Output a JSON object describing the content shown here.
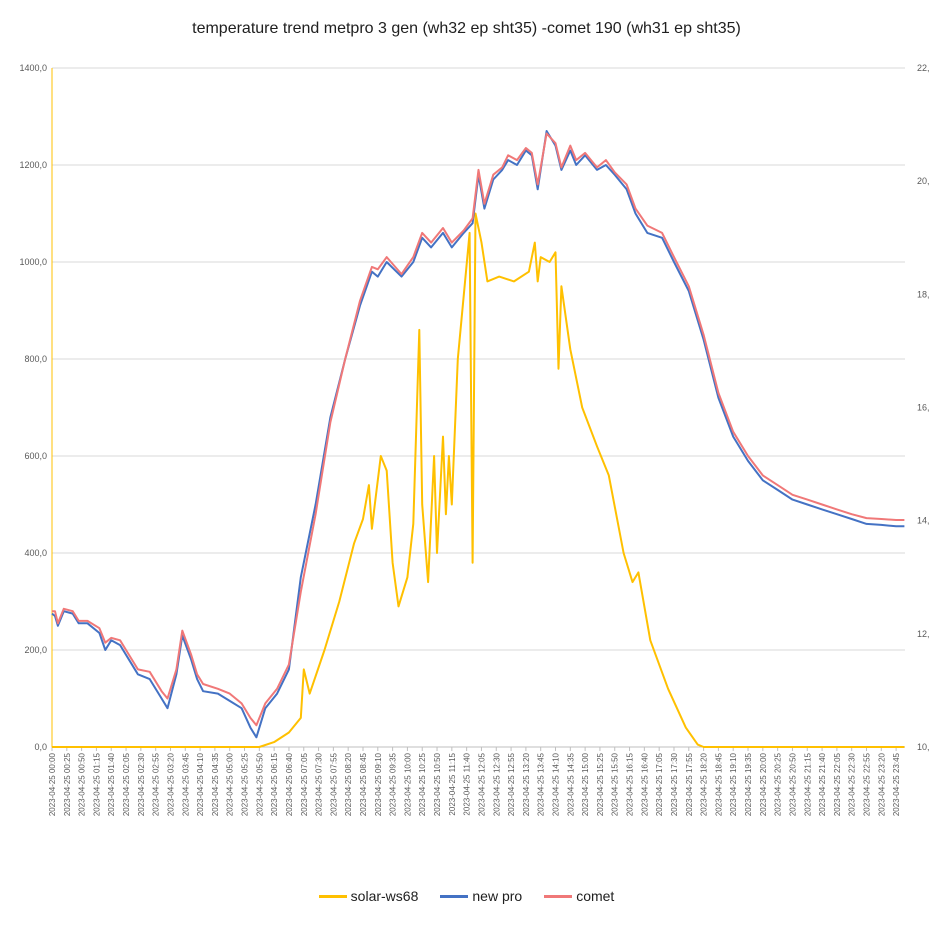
{
  "chart_data": {
    "type": "line",
    "title": "temperature trend metpro 3 gen (wh32 ep sht35) -comet 190 (wh31 ep sht35)",
    "xlabel": "",
    "ylabel": "",
    "ylim": [
      0,
      1400
    ],
    "y_ticks": [
      "0,0",
      "200,0",
      "400,0",
      "600,0",
      "800,0",
      "1000,0",
      "1200,0",
      "1400,0"
    ],
    "y2lim": [
      10,
      22
    ],
    "y2_ticks": [
      "10,",
      "12,",
      "14,",
      "16,",
      "18,",
      "20,",
      "22,"
    ],
    "grid": true,
    "legend_position": "bottom",
    "x_ticks": [
      "2023-04-25 00:00",
      "2023-04-25 00:25",
      "2023-04-25 00:50",
      "2023-04-25 01:15",
      "2023-04-25 01:40",
      "2023-04-25 02:05",
      "2023-04-25 02:30",
      "2023-04-25 02:55",
      "2023-04-25 03:20",
      "2023-04-25 03:45",
      "2023-04-25 04:10",
      "2023-04-25 04:35",
      "2023-04-25 05:00",
      "2023-04-25 05:25",
      "2023-04-25 05:50",
      "2023-04-25 06:15",
      "2023-04-25 06:40",
      "2023-04-25 07:05",
      "2023-04-25 07:30",
      "2023-04-25 07:55",
      "2023-04-25 08:20",
      "2023-04-25 08:45",
      "2023-04-25 09:10",
      "2023-04-25 09:35",
      "2023-04-25 10:00",
      "2023-04-25 10:25",
      "2023-04-25 10:50",
      "2023-04-25 11:15",
      "2023-04-25 11:40",
      "2023-04-25 12:05",
      "2023-04-25 12:30",
      "2023-04-25 12:55",
      "2023-04-25 13:20",
      "2023-04-25 13:45",
      "2023-04-25 14:10",
      "2023-04-25 14:35",
      "2023-04-25 15:00",
      "2023-04-25 15:25",
      "2023-04-25 15:50",
      "2023-04-25 16:15",
      "2023-04-25 16:40",
      "2023-04-25 17:05",
      "2023-04-25 17:30",
      "2023-04-25 17:55",
      "2023-04-25 18:20",
      "2023-04-25 18:45",
      "2023-04-25 19:10",
      "2023-04-25 19:35",
      "2023-04-25 20:00",
      "2023-04-25 20:25",
      "2023-04-25 20:50",
      "2023-04-25 21:15",
      "2023-04-25 21:40",
      "2023-04-25 22:05",
      "2023-04-25 22:30",
      "2023-04-25 22:55",
      "2023-04-25 23:20",
      "2023-04-25 23:45"
    ],
    "series": [
      {
        "name": "solar-ws68",
        "color": "#FFC000",
        "axis": "left",
        "points": [
          [
            "2023-04-25 00:00",
            0
          ],
          [
            "2023-04-25 05:50",
            0
          ],
          [
            "2023-04-25 06:15",
            10
          ],
          [
            "2023-04-25 06:40",
            30
          ],
          [
            "2023-04-25 07:00",
            60
          ],
          [
            "2023-04-25 07:05",
            160
          ],
          [
            "2023-04-25 07:15",
            110
          ],
          [
            "2023-04-25 07:40",
            200
          ],
          [
            "2023-04-25 08:05",
            300
          ],
          [
            "2023-04-25 08:30",
            420
          ],
          [
            "2023-04-25 08:45",
            470
          ],
          [
            "2023-04-25 08:55",
            540
          ],
          [
            "2023-04-25 09:00",
            450
          ],
          [
            "2023-04-25 09:05",
            500
          ],
          [
            "2023-04-25 09:15",
            600
          ],
          [
            "2023-04-25 09:25",
            570
          ],
          [
            "2023-04-25 09:35",
            380
          ],
          [
            "2023-04-25 09:45",
            290
          ],
          [
            "2023-04-25 10:00",
            350
          ],
          [
            "2023-04-25 10:10",
            460
          ],
          [
            "2023-04-25 10:20",
            860
          ],
          [
            "2023-04-25 10:25",
            500
          ],
          [
            "2023-04-25 10:35",
            340
          ],
          [
            "2023-04-25 10:45",
            600
          ],
          [
            "2023-04-25 10:50",
            400
          ],
          [
            "2023-04-25 11:00",
            640
          ],
          [
            "2023-04-25 11:05",
            480
          ],
          [
            "2023-04-25 11:10",
            600
          ],
          [
            "2023-04-25 11:15",
            500
          ],
          [
            "2023-04-25 11:25",
            800
          ],
          [
            "2023-04-25 11:45",
            1060
          ],
          [
            "2023-04-25 11:50",
            380
          ],
          [
            "2023-04-25 11:55",
            1100
          ],
          [
            "2023-04-25 12:05",
            1040
          ],
          [
            "2023-04-25 12:15",
            960
          ],
          [
            "2023-04-25 12:35",
            970
          ],
          [
            "2023-04-25 13:00",
            960
          ],
          [
            "2023-04-25 13:25",
            980
          ],
          [
            "2023-04-25 13:35",
            1040
          ],
          [
            "2023-04-25 13:40",
            960
          ],
          [
            "2023-04-25 13:45",
            1010
          ],
          [
            "2023-04-25 14:00",
            1000
          ],
          [
            "2023-04-25 14:10",
            1020
          ],
          [
            "2023-04-25 14:15",
            780
          ],
          [
            "2023-04-25 14:20",
            950
          ],
          [
            "2023-04-25 14:35",
            820
          ],
          [
            "2023-04-25 14:55",
            700
          ],
          [
            "2023-04-25 15:20",
            620
          ],
          [
            "2023-04-25 15:40",
            560
          ],
          [
            "2023-04-25 16:05",
            400
          ],
          [
            "2023-04-25 16:20",
            340
          ],
          [
            "2023-04-25 16:30",
            360
          ],
          [
            "2023-04-25 16:50",
            220
          ],
          [
            "2023-04-25 17:20",
            120
          ],
          [
            "2023-04-25 17:50",
            40
          ],
          [
            "2023-04-25 18:10",
            5
          ],
          [
            "2023-04-25 18:20",
            0
          ],
          [
            "2023-04-25 23:59",
            0
          ]
        ]
      },
      {
        "name": "new pro",
        "color": "#4472C4",
        "axis": "left",
        "points": [
          [
            "2023-04-25 00:00",
            275
          ],
          [
            "2023-04-25 00:05",
            270
          ],
          [
            "2023-04-25 00:10",
            250
          ],
          [
            "2023-04-25 00:20",
            280
          ],
          [
            "2023-04-25 00:35",
            275
          ],
          [
            "2023-04-25 00:45",
            255
          ],
          [
            "2023-04-25 01:00",
            255
          ],
          [
            "2023-04-25 01:20",
            235
          ],
          [
            "2023-04-25 01:30",
            200
          ],
          [
            "2023-04-25 01:40",
            220
          ],
          [
            "2023-04-25 01:55",
            210
          ],
          [
            "2023-04-25 02:10",
            180
          ],
          [
            "2023-04-25 02:25",
            150
          ],
          [
            "2023-04-25 02:45",
            140
          ],
          [
            "2023-04-25 03:05",
            100
          ],
          [
            "2023-04-25 03:15",
            80
          ],
          [
            "2023-04-25 03:30",
            150
          ],
          [
            "2023-04-25 03:40",
            230
          ],
          [
            "2023-04-25 03:55",
            180
          ],
          [
            "2023-04-25 04:05",
            140
          ],
          [
            "2023-04-25 04:15",
            115
          ],
          [
            "2023-04-25 04:40",
            110
          ],
          [
            "2023-04-25 05:00",
            95
          ],
          [
            "2023-04-25 05:20",
            80
          ],
          [
            "2023-04-25 05:35",
            40
          ],
          [
            "2023-04-25 05:45",
            20
          ],
          [
            "2023-04-25 06:00",
            80
          ],
          [
            "2023-04-25 06:20",
            110
          ],
          [
            "2023-04-25 06:40",
            160
          ],
          [
            "2023-04-25 07:00",
            350
          ],
          [
            "2023-04-25 07:25",
            500
          ],
          [
            "2023-04-25 07:50",
            680
          ],
          [
            "2023-04-25 08:15",
            800
          ],
          [
            "2023-04-25 08:40",
            910
          ],
          [
            "2023-04-25 09:00",
            980
          ],
          [
            "2023-04-25 09:10",
            970
          ],
          [
            "2023-04-25 09:25",
            1000
          ],
          [
            "2023-04-25 09:50",
            970
          ],
          [
            "2023-04-25 10:10",
            1000
          ],
          [
            "2023-04-25 10:25",
            1050
          ],
          [
            "2023-04-25 10:40",
            1030
          ],
          [
            "2023-04-25 11:00",
            1060
          ],
          [
            "2023-04-25 11:15",
            1030
          ],
          [
            "2023-04-25 11:35",
            1060
          ],
          [
            "2023-04-25 11:50",
            1080
          ],
          [
            "2023-04-25 12:00",
            1180
          ],
          [
            "2023-04-25 12:10",
            1110
          ],
          [
            "2023-04-25 12:25",
            1170
          ],
          [
            "2023-04-25 12:40",
            1190
          ],
          [
            "2023-04-25 12:50",
            1210
          ],
          [
            "2023-04-25 13:05",
            1200
          ],
          [
            "2023-04-25 13:20",
            1230
          ],
          [
            "2023-04-25 13:30",
            1220
          ],
          [
            "2023-04-25 13:40",
            1150
          ],
          [
            "2023-04-25 13:55",
            1270
          ],
          [
            "2023-04-25 14:10",
            1240
          ],
          [
            "2023-04-25 14:20",
            1190
          ],
          [
            "2023-04-25 14:35",
            1230
          ],
          [
            "2023-04-25 14:45",
            1200
          ],
          [
            "2023-04-25 15:00",
            1220
          ],
          [
            "2023-04-25 15:20",
            1190
          ],
          [
            "2023-04-25 15:35",
            1200
          ],
          [
            "2023-04-25 15:50",
            1180
          ],
          [
            "2023-04-25 16:10",
            1150
          ],
          [
            "2023-04-25 16:25",
            1100
          ],
          [
            "2023-04-25 16:45",
            1060
          ],
          [
            "2023-04-25 17:10",
            1050
          ],
          [
            "2023-04-25 17:30",
            1000
          ],
          [
            "2023-04-25 17:55",
            940
          ],
          [
            "2023-04-25 18:20",
            840
          ],
          [
            "2023-04-25 18:45",
            720
          ],
          [
            "2023-04-25 19:10",
            640
          ],
          [
            "2023-04-25 19:35",
            590
          ],
          [
            "2023-04-25 20:00",
            550
          ],
          [
            "2023-04-25 20:25",
            530
          ],
          [
            "2023-04-25 20:50",
            510
          ],
          [
            "2023-04-25 21:15",
            500
          ],
          [
            "2023-04-25 21:40",
            490
          ],
          [
            "2023-04-25 22:05",
            480
          ],
          [
            "2023-04-25 22:30",
            470
          ],
          [
            "2023-04-25 22:55",
            460
          ],
          [
            "2023-04-25 23:20",
            458
          ],
          [
            "2023-04-25 23:45",
            455
          ],
          [
            "2023-04-25 23:59",
            455
          ]
        ]
      },
      {
        "name": "comet",
        "color": "#F07878",
        "axis": "left",
        "points": [
          [
            "2023-04-25 00:00",
            280
          ],
          [
            "2023-04-25 00:05",
            280
          ],
          [
            "2023-04-25 00:10",
            255
          ],
          [
            "2023-04-25 00:20",
            285
          ],
          [
            "2023-04-25 00:35",
            280
          ],
          [
            "2023-04-25 00:45",
            260
          ],
          [
            "2023-04-25 01:00",
            260
          ],
          [
            "2023-04-25 01:20",
            245
          ],
          [
            "2023-04-25 01:30",
            215
          ],
          [
            "2023-04-25 01:40",
            225
          ],
          [
            "2023-04-25 01:55",
            220
          ],
          [
            "2023-04-25 02:10",
            190
          ],
          [
            "2023-04-25 02:25",
            160
          ],
          [
            "2023-04-25 02:45",
            155
          ],
          [
            "2023-04-25 03:05",
            115
          ],
          [
            "2023-04-25 03:15",
            100
          ],
          [
            "2023-04-25 03:30",
            160
          ],
          [
            "2023-04-25 03:40",
            240
          ],
          [
            "2023-04-25 03:55",
            190
          ],
          [
            "2023-04-25 04:05",
            150
          ],
          [
            "2023-04-25 04:15",
            130
          ],
          [
            "2023-04-25 04:40",
            120
          ],
          [
            "2023-04-25 05:00",
            110
          ],
          [
            "2023-04-25 05:20",
            90
          ],
          [
            "2023-04-25 05:35",
            60
          ],
          [
            "2023-04-25 05:45",
            45
          ],
          [
            "2023-04-25 06:00",
            90
          ],
          [
            "2023-04-25 06:20",
            120
          ],
          [
            "2023-04-25 06:40",
            170
          ],
          [
            "2023-04-25 07:00",
            320
          ],
          [
            "2023-04-25 07:25",
            480
          ],
          [
            "2023-04-25 07:50",
            670
          ],
          [
            "2023-04-25 08:15",
            800
          ],
          [
            "2023-04-25 08:40",
            920
          ],
          [
            "2023-04-25 09:00",
            990
          ],
          [
            "2023-04-25 09:10",
            985
          ],
          [
            "2023-04-25 09:25",
            1010
          ],
          [
            "2023-04-25 09:50",
            975
          ],
          [
            "2023-04-25 10:10",
            1010
          ],
          [
            "2023-04-25 10:25",
            1060
          ],
          [
            "2023-04-25 10:40",
            1040
          ],
          [
            "2023-04-25 11:00",
            1070
          ],
          [
            "2023-04-25 11:15",
            1040
          ],
          [
            "2023-04-25 11:35",
            1065
          ],
          [
            "2023-04-25 11:50",
            1090
          ],
          [
            "2023-04-25 12:00",
            1190
          ],
          [
            "2023-04-25 12:10",
            1120
          ],
          [
            "2023-04-25 12:25",
            1180
          ],
          [
            "2023-04-25 12:40",
            1195
          ],
          [
            "2023-04-25 12:50",
            1220
          ],
          [
            "2023-04-25 13:05",
            1210
          ],
          [
            "2023-04-25 13:20",
            1235
          ],
          [
            "2023-04-25 13:30",
            1225
          ],
          [
            "2023-04-25 13:40",
            1160
          ],
          [
            "2023-04-25 13:55",
            1265
          ],
          [
            "2023-04-25 14:10",
            1245
          ],
          [
            "2023-04-25 14:20",
            1195
          ],
          [
            "2023-04-25 14:35",
            1240
          ],
          [
            "2023-04-25 14:45",
            1210
          ],
          [
            "2023-04-25 15:00",
            1225
          ],
          [
            "2023-04-25 15:20",
            1195
          ],
          [
            "2023-04-25 15:35",
            1210
          ],
          [
            "2023-04-25 15:50",
            1185
          ],
          [
            "2023-04-25 16:10",
            1160
          ],
          [
            "2023-04-25 16:25",
            1110
          ],
          [
            "2023-04-25 16:45",
            1075
          ],
          [
            "2023-04-25 17:10",
            1060
          ],
          [
            "2023-04-25 17:30",
            1010
          ],
          [
            "2023-04-25 17:55",
            950
          ],
          [
            "2023-04-25 18:20",
            850
          ],
          [
            "2023-04-25 18:45",
            730
          ],
          [
            "2023-04-25 19:10",
            650
          ],
          [
            "2023-04-25 19:35",
            600
          ],
          [
            "2023-04-25 20:00",
            560
          ],
          [
            "2023-04-25 20:25",
            540
          ],
          [
            "2023-04-25 20:50",
            520
          ],
          [
            "2023-04-25 21:15",
            510
          ],
          [
            "2023-04-25 21:40",
            500
          ],
          [
            "2023-04-25 22:05",
            490
          ],
          [
            "2023-04-25 22:30",
            480
          ],
          [
            "2023-04-25 22:55",
            472
          ],
          [
            "2023-04-25 23:20",
            470
          ],
          [
            "2023-04-25 23:45",
            468
          ],
          [
            "2023-04-25 23:59",
            468
          ]
        ]
      }
    ]
  }
}
